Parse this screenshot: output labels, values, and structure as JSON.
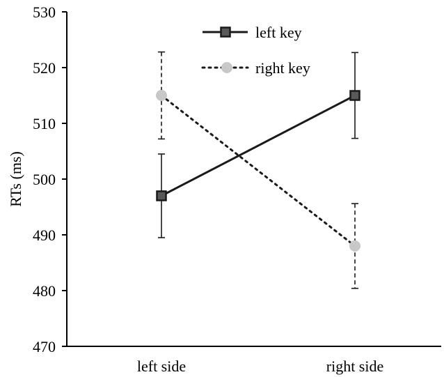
{
  "chart_data": {
    "type": "line",
    "title": "",
    "xlabel": "",
    "ylabel": "RTs (ms)",
    "categories": [
      "left side",
      "right side"
    ],
    "ylim": [
      470,
      530
    ],
    "yticks": [
      470,
      480,
      490,
      500,
      510,
      520,
      530
    ],
    "grid": false,
    "legend_position": "top-center",
    "series": [
      {
        "name": "left key",
        "values": [
          497,
          515
        ],
        "error": [
          7.5,
          7.7
        ],
        "marker": "square",
        "line_style": "solid",
        "color": "#1a1a1a",
        "marker_fill": "#595959"
      },
      {
        "name": "right key",
        "values": [
          515,
          488
        ],
        "error": [
          7.8,
          7.6
        ],
        "marker": "circle",
        "line_style": "dotted",
        "color": "#1a1a1a",
        "marker_fill": "#c8c8c8"
      }
    ]
  }
}
